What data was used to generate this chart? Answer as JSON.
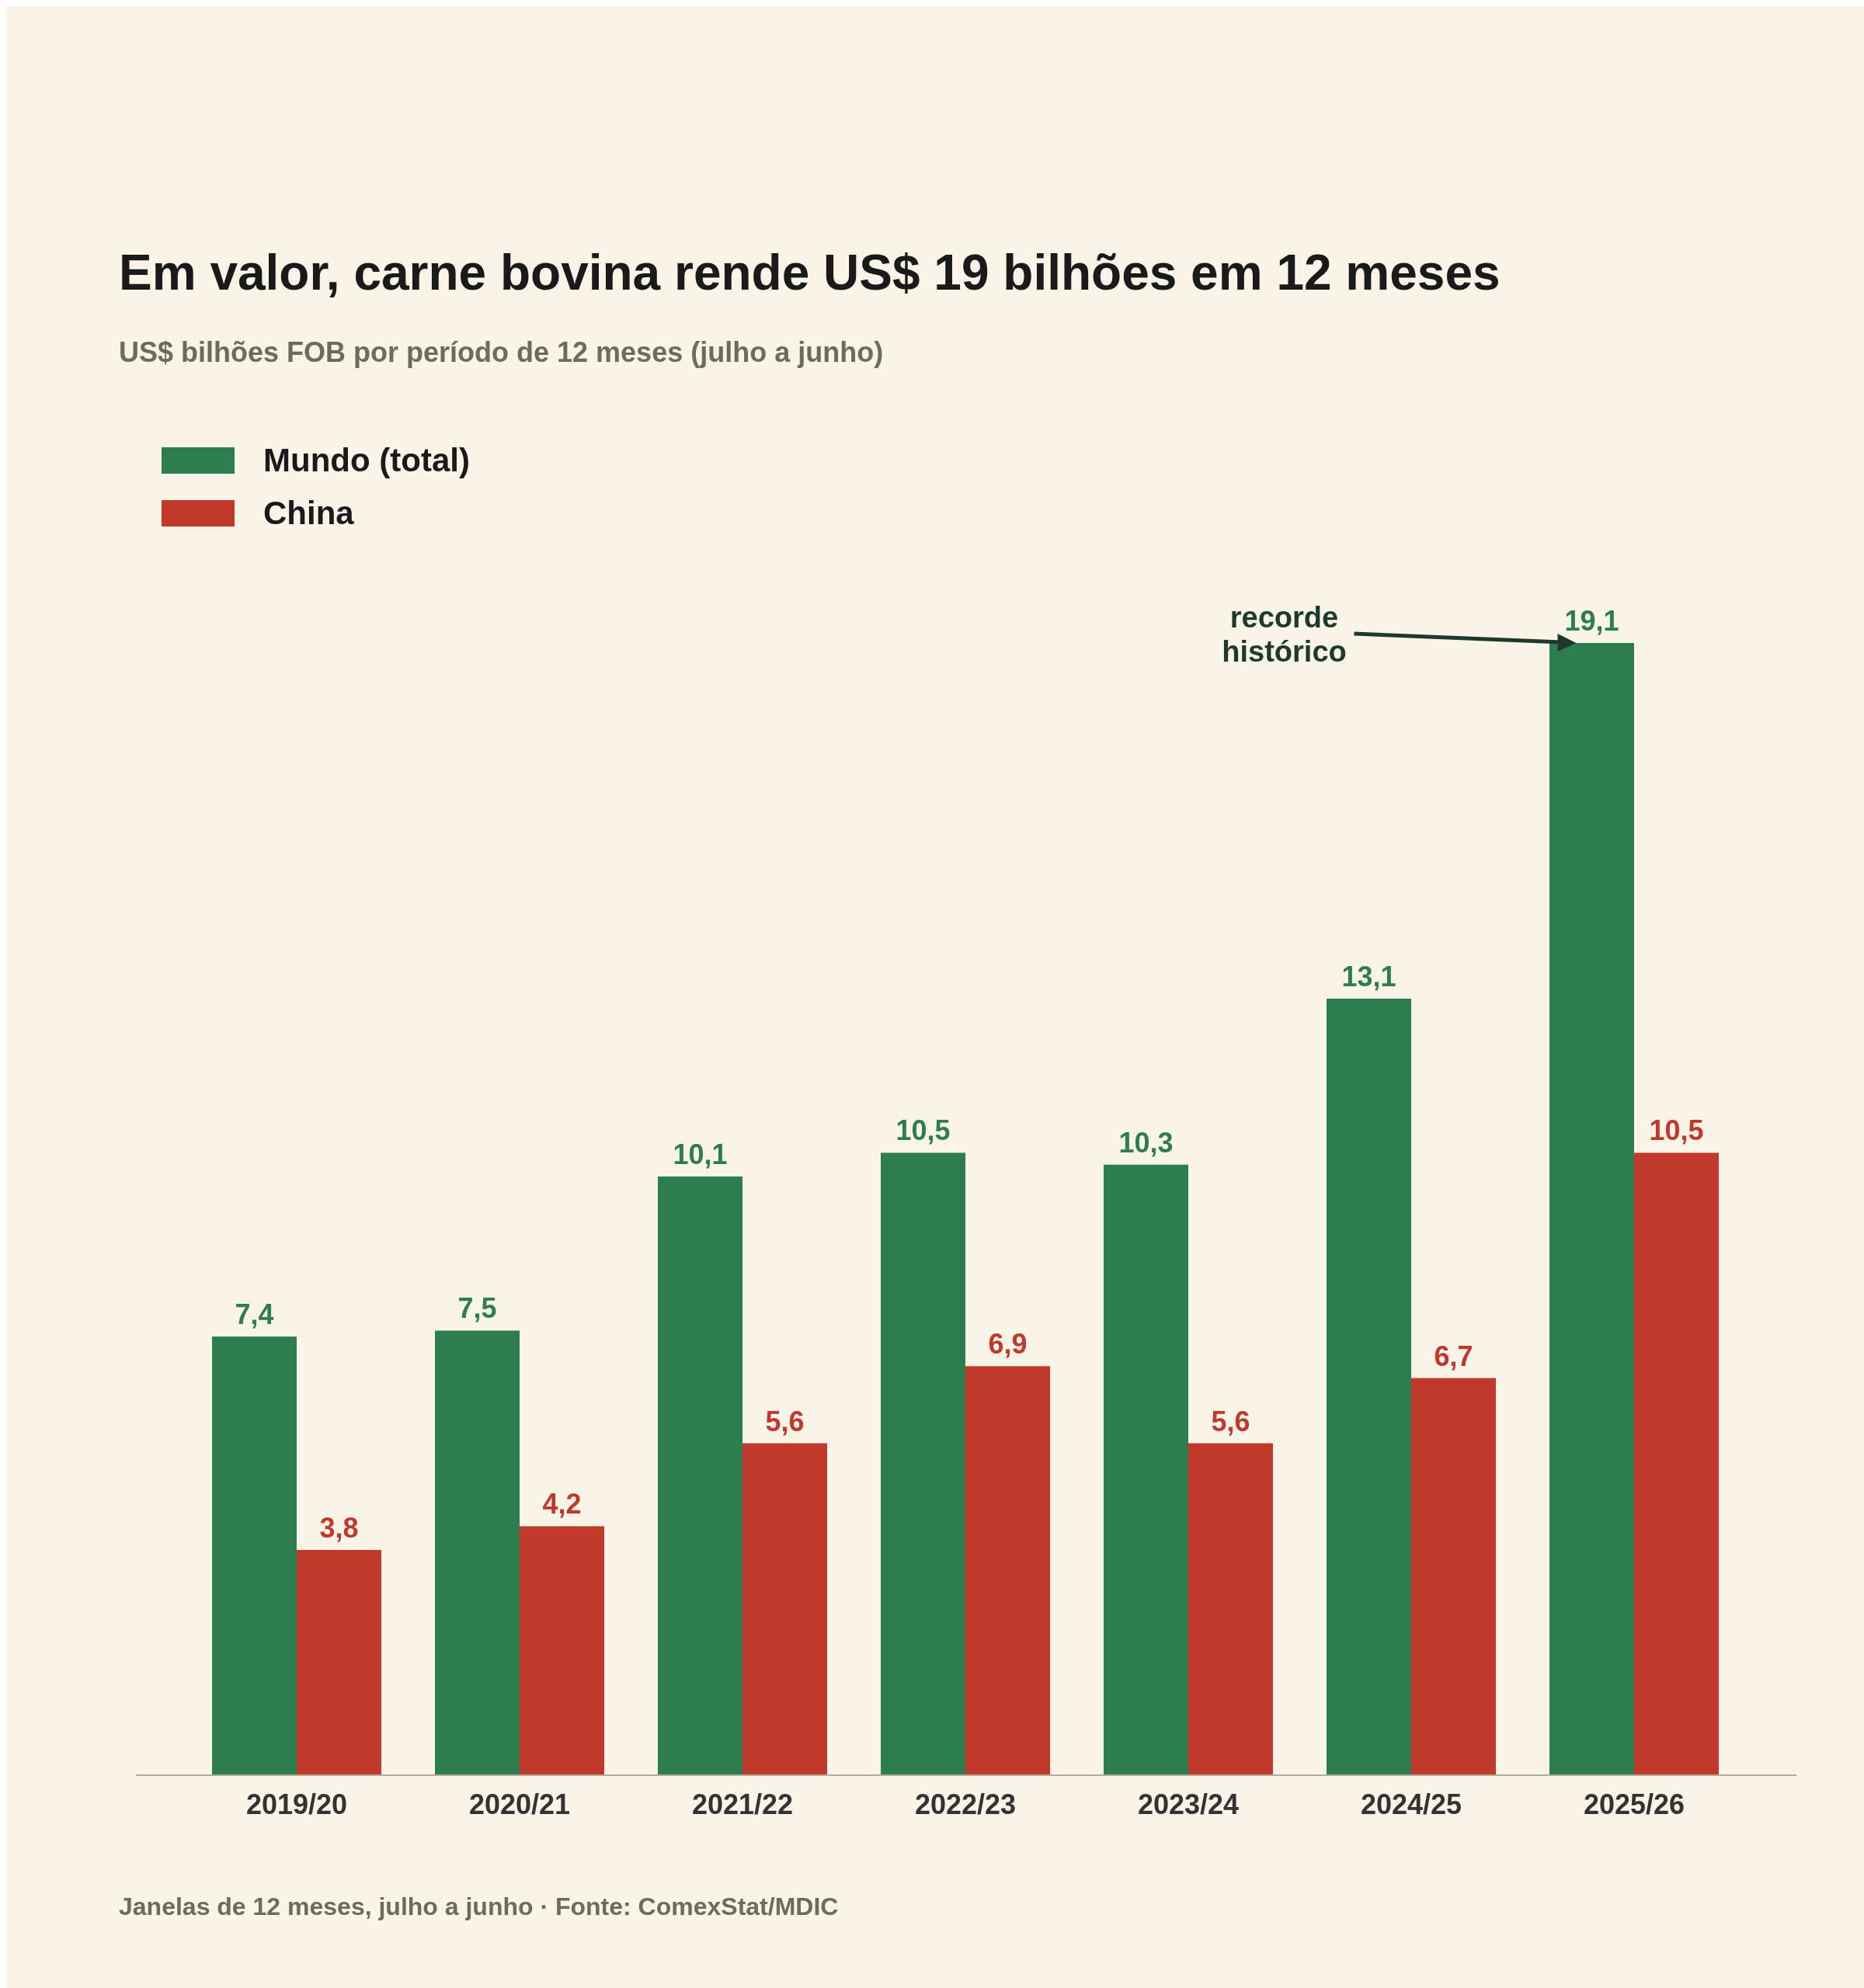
{
  "chart_data": {
    "type": "bar",
    "title": "Em valor, carne bovina rende US$ 19 bilhões em 12 meses",
    "subtitle": "US$ bilhões FOB por período de 12 meses (julho a junho)",
    "categories": [
      "2019/20",
      "2020/21",
      "2021/22",
      "2022/23",
      "2023/24",
      "2024/25",
      "2025/26"
    ],
    "series": [
      {
        "name": "Mundo (total)",
        "color": "#2e7d4f",
        "values": [
          7.4,
          7.5,
          10.1,
          10.5,
          10.3,
          13.1,
          19.1
        ],
        "value_labels": [
          "7,4",
          "7,5",
          "10,1",
          "10,5",
          "10,3",
          "13,1",
          "19,1"
        ]
      },
      {
        "name": "China",
        "color": "#c0392b",
        "values": [
          3.8,
          4.2,
          5.6,
          6.9,
          5.6,
          6.7,
          10.5
        ],
        "value_labels": [
          "3,8",
          "4,2",
          "5,6",
          "6,9",
          "5,6",
          "6,7",
          "10,5"
        ]
      }
    ],
    "legend": "top left",
    "grid": false,
    "annotations": [
      "recorde\nhistórico",
      "Janelas de 12 meses, julho a junho · Fonte: ComexStat/MDIC"
    ]
  }
}
